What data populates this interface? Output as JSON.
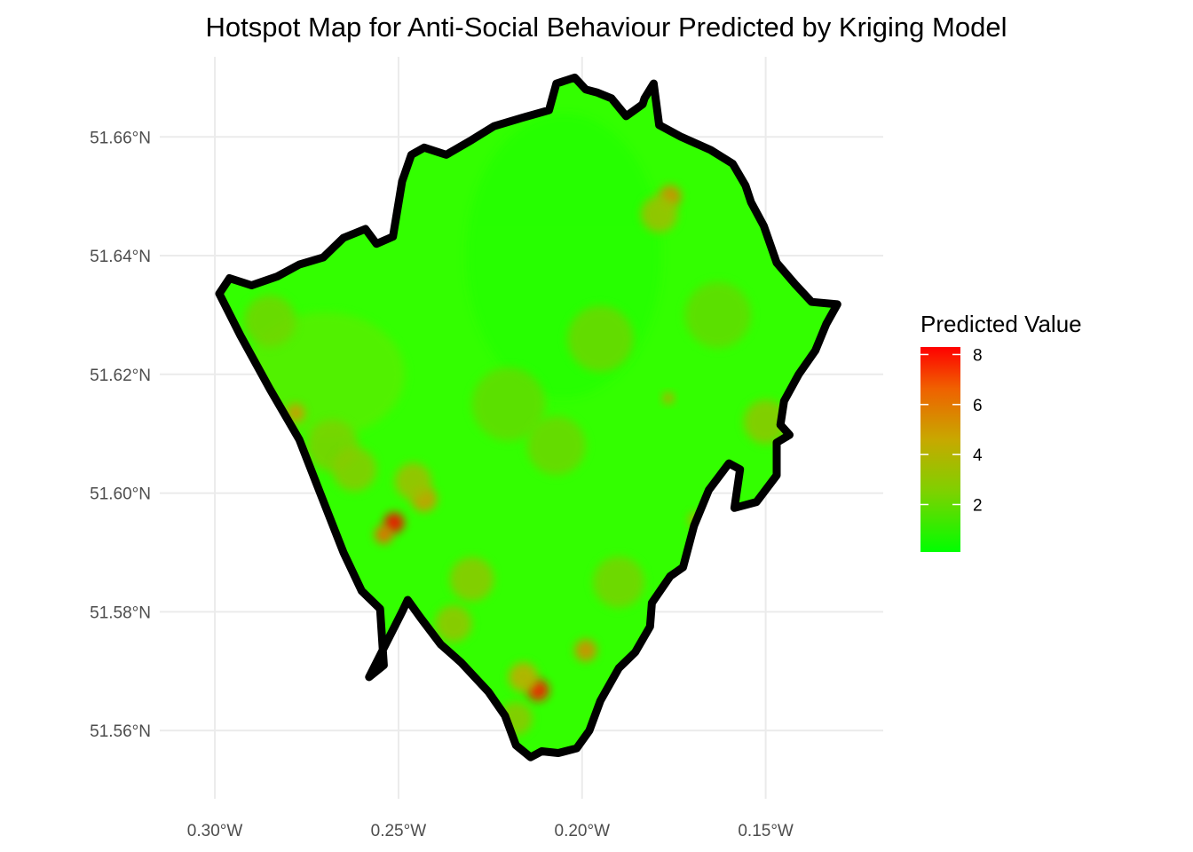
{
  "chart_data": {
    "type": "heatmap",
    "title": "Hotspot Map for Anti-Social Behaviour Predicted by Kriging Model",
    "x_axis": {
      "ticks": [
        {
          "value": -0.3,
          "label": "0.30°W"
        },
        {
          "value": -0.25,
          "label": "0.25°W"
        },
        {
          "value": -0.2,
          "label": "0.20°W"
        },
        {
          "value": -0.15,
          "label": "0.15°W"
        }
      ]
    },
    "y_axis": {
      "ticks": [
        {
          "value": 51.56,
          "label": "51.56°N"
        },
        {
          "value": 51.58,
          "label": "51.58°N"
        },
        {
          "value": 51.6,
          "label": "51.60°N"
        },
        {
          "value": 51.62,
          "label": "51.62°N"
        },
        {
          "value": 51.64,
          "label": "51.64°N"
        },
        {
          "value": 51.66,
          "label": "51.66°N"
        }
      ]
    },
    "xlim": [
      -0.315,
      -0.118
    ],
    "ylim": [
      51.5485,
      51.6735
    ],
    "grid": true,
    "legend": {
      "title": "Predicted Value",
      "position": "right",
      "ticks": [
        2,
        4,
        6,
        8
      ],
      "range": [
        0.1,
        8.3
      ],
      "low_color": "#00ff00",
      "high_color": "#ff0000"
    },
    "boundary_color": "#000000",
    "boundary": [
      [
        -0.2988,
        51.6336
      ],
      [
        -0.296,
        51.6362
      ],
      [
        -0.29,
        51.635
      ],
      [
        -0.283,
        51.6365
      ],
      [
        -0.277,
        51.6385
      ],
      [
        -0.2705,
        51.6397
      ],
      [
        -0.265,
        51.643
      ],
      [
        -0.259,
        51.6445
      ],
      [
        -0.256,
        51.642
      ],
      [
        -0.2515,
        51.6432
      ],
      [
        -0.249,
        51.6525
      ],
      [
        -0.2465,
        51.657
      ],
      [
        -0.243,
        51.6582
      ],
      [
        -0.237,
        51.657
      ],
      [
        -0.23,
        51.6595
      ],
      [
        -0.224,
        51.6618
      ],
      [
        -0.2165,
        51.6632
      ],
      [
        -0.209,
        51.6645
      ],
      [
        -0.207,
        51.669
      ],
      [
        -0.202,
        51.67
      ],
      [
        -0.199,
        51.668
      ],
      [
        -0.196,
        51.6675
      ],
      [
        -0.192,
        51.6665
      ],
      [
        -0.188,
        51.6635
      ],
      [
        -0.1835,
        51.6655
      ],
      [
        -0.183,
        51.6665
      ],
      [
        -0.1805,
        51.669
      ],
      [
        -0.179,
        51.662
      ],
      [
        -0.173,
        51.66
      ],
      [
        -0.165,
        51.6578
      ],
      [
        -0.159,
        51.6555
      ],
      [
        -0.1555,
        51.6518
      ],
      [
        -0.154,
        51.649
      ],
      [
        -0.1505,
        51.645
      ],
      [
        -0.147,
        51.6388
      ],
      [
        -0.142,
        51.6352
      ],
      [
        -0.1375,
        51.6322
      ],
      [
        -0.1305,
        51.6318
      ],
      [
        -0.1335,
        51.6285
      ],
      [
        -0.1365,
        51.624
      ],
      [
        -0.141,
        51.62
      ],
      [
        -0.145,
        51.6155
      ],
      [
        -0.146,
        51.6115
      ],
      [
        -0.1435,
        51.6098
      ],
      [
        -0.147,
        51.6085
      ],
      [
        -0.147,
        51.603
      ],
      [
        -0.1525,
        51.5985
      ],
      [
        -0.1585,
        51.5975
      ],
      [
        -0.157,
        51.604
      ],
      [
        -0.16,
        51.605
      ],
      [
        -0.1655,
        51.6005
      ],
      [
        -0.1695,
        51.5945
      ],
      [
        -0.1725,
        51.5875
      ],
      [
        -0.176,
        51.586
      ],
      [
        -0.181,
        51.5815
      ],
      [
        -0.1815,
        51.5775
      ],
      [
        -0.1855,
        51.5732
      ],
      [
        -0.19,
        51.5705
      ],
      [
        -0.195,
        51.565
      ],
      [
        -0.198,
        51.56
      ],
      [
        -0.2015,
        51.557
      ],
      [
        -0.2065,
        51.5562
      ],
      [
        -0.211,
        51.5565
      ],
      [
        -0.214,
        51.5555
      ],
      [
        -0.218,
        51.5575
      ],
      [
        -0.221,
        51.5625
      ],
      [
        -0.2255,
        51.5665
      ],
      [
        -0.233,
        51.5715
      ],
      [
        -0.2385,
        51.5745
      ],
      [
        -0.244,
        51.579
      ],
      [
        -0.2475,
        51.582
      ],
      [
        -0.249,
        51.58
      ],
      [
        -0.258,
        51.569
      ],
      [
        -0.254,
        51.571
      ],
      [
        -0.255,
        51.5805
      ],
      [
        -0.26,
        51.5835
      ],
      [
        -0.265,
        51.59
      ],
      [
        -0.271,
        51.5995
      ],
      [
        -0.277,
        51.609
      ],
      [
        -0.285,
        51.6175
      ],
      [
        -0.293,
        51.6265
      ],
      [
        -0.2988,
        51.6336
      ]
    ],
    "hotspots": [
      {
        "x": -0.2512,
        "y": 51.595,
        "value": 8.2,
        "radius": 0.0028
      },
      {
        "x": -0.254,
        "y": 51.593,
        "value": 6.5,
        "radius": 0.0025
      },
      {
        "x": -0.243,
        "y": 51.599,
        "value": 5.0,
        "radius": 0.0035
      },
      {
        "x": -0.246,
        "y": 51.602,
        "value": 3.5,
        "radius": 0.005
      },
      {
        "x": -0.212,
        "y": 51.5668,
        "value": 8.0,
        "radius": 0.003
      },
      {
        "x": -0.216,
        "y": 51.569,
        "value": 4.5,
        "radius": 0.004
      },
      {
        "x": -0.199,
        "y": 51.5735,
        "value": 5.5,
        "radius": 0.003
      },
      {
        "x": -0.278,
        "y": 51.6135,
        "value": 5.0,
        "radius": 0.0025
      },
      {
        "x": -0.176,
        "y": 51.65,
        "value": 5.5,
        "radius": 0.003
      },
      {
        "x": -0.179,
        "y": 51.647,
        "value": 3.5,
        "radius": 0.005
      },
      {
        "x": -0.1765,
        "y": 51.616,
        "value": 5.0,
        "radius": 0.0015
      },
      {
        "x": -0.169,
        "y": 51.5955,
        "value": 4.5,
        "radius": 0.002
      },
      {
        "x": -0.23,
        "y": 51.5855,
        "value": 3.0,
        "radius": 0.006
      },
      {
        "x": -0.235,
        "y": 51.578,
        "value": 3.2,
        "radius": 0.005
      },
      {
        "x": -0.268,
        "y": 51.608,
        "value": 2.5,
        "radius": 0.007
      },
      {
        "x": -0.262,
        "y": 51.604,
        "value": 2.8,
        "radius": 0.006
      },
      {
        "x": -0.15,
        "y": 51.612,
        "value": 3.0,
        "radius": 0.006
      },
      {
        "x": -0.218,
        "y": 51.562,
        "value": 3.0,
        "radius": 0.0045
      },
      {
        "x": -0.195,
        "y": 51.626,
        "value": 2.2,
        "radius": 0.009
      },
      {
        "x": -0.22,
        "y": 51.615,
        "value": 2.0,
        "radius": 0.01
      },
      {
        "x": -0.285,
        "y": 51.629,
        "value": 2.3,
        "radius": 0.007
      },
      {
        "x": -0.19,
        "y": 51.585,
        "value": 2.4,
        "radius": 0.007
      },
      {
        "x": -0.207,
        "y": 51.608,
        "value": 2.2,
        "radius": 0.008
      },
      {
        "x": -0.163,
        "y": 51.63,
        "value": 2.0,
        "radius": 0.009
      }
    ]
  }
}
